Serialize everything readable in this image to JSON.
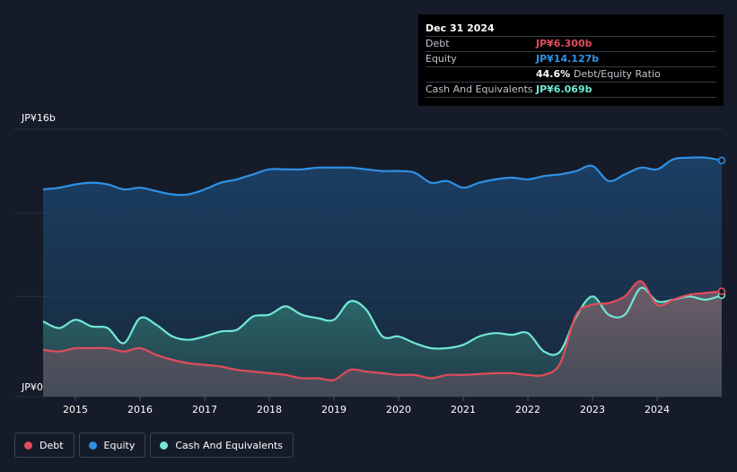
{
  "tooltip": {
    "date": "Dec 31 2024",
    "rows": [
      {
        "label": "Debt",
        "value": "JP¥6.300b",
        "color": "#e04c5c"
      },
      {
        "label": "Equity",
        "value": "JP¥14.127b",
        "color": "#2f91e6"
      },
      {
        "label": "",
        "value": "44.6%",
        "suffix": "Debt/Equity Ratio",
        "color": "#ffffff"
      },
      {
        "label": "Cash And Equivalents",
        "value": "JP¥6.069b",
        "color": "#71e7d6"
      }
    ]
  },
  "legend": [
    {
      "label": "Debt",
      "color": "#e04c5c"
    },
    {
      "label": "Equity",
      "color": "#2f91e6"
    },
    {
      "label": "Cash And Equivalents",
      "color": "#71e7d6"
    }
  ],
  "chart_data": {
    "type": "area",
    "ylabel_top": "JP¥16b",
    "ylabel_bottom": "JP¥0",
    "ylim": [
      0,
      16
    ],
    "xlim": [
      2014.5,
      2025.0
    ],
    "x_ticks": [
      "2015",
      "2016",
      "2017",
      "2018",
      "2019",
      "2020",
      "2021",
      "2022",
      "2023",
      "2024"
    ],
    "x_tick_values": [
      2015,
      2016,
      2017,
      2018,
      2019,
      2020,
      2021,
      2022,
      2023,
      2024
    ],
    "series": [
      {
        "name": "Equity",
        "color": "#2f91e6",
        "points": [
          [
            2014.5,
            12.4
          ],
          [
            2014.75,
            12.5
          ],
          [
            2015.0,
            12.7
          ],
          [
            2015.25,
            12.8
          ],
          [
            2015.5,
            12.7
          ],
          [
            2015.75,
            12.4
          ],
          [
            2016.0,
            12.5
          ],
          [
            2016.25,
            12.3
          ],
          [
            2016.5,
            12.1
          ],
          [
            2016.75,
            12.1
          ],
          [
            2017.0,
            12.4
          ],
          [
            2017.25,
            12.8
          ],
          [
            2017.5,
            13.0
          ],
          [
            2017.75,
            13.3
          ],
          [
            2018.0,
            13.6
          ],
          [
            2018.25,
            13.6
          ],
          [
            2018.5,
            13.6
          ],
          [
            2018.75,
            13.7
          ],
          [
            2019.0,
            13.7
          ],
          [
            2019.25,
            13.7
          ],
          [
            2019.5,
            13.6
          ],
          [
            2019.75,
            13.5
          ],
          [
            2020.0,
            13.5
          ],
          [
            2020.25,
            13.4
          ],
          [
            2020.5,
            12.8
          ],
          [
            2020.75,
            12.9
          ],
          [
            2021.0,
            12.5
          ],
          [
            2021.25,
            12.8
          ],
          [
            2021.5,
            13.0
          ],
          [
            2021.75,
            13.1
          ],
          [
            2022.0,
            13.0
          ],
          [
            2022.25,
            13.2
          ],
          [
            2022.5,
            13.3
          ],
          [
            2022.75,
            13.5
          ],
          [
            2023.0,
            13.8
          ],
          [
            2023.25,
            12.9
          ],
          [
            2023.5,
            13.3
          ],
          [
            2023.75,
            13.7
          ],
          [
            2024.0,
            13.6
          ],
          [
            2024.25,
            14.2
          ],
          [
            2024.5,
            14.3
          ],
          [
            2024.75,
            14.3
          ],
          [
            2025.0,
            14.127
          ]
        ]
      },
      {
        "name": "Cash And Equivalents",
        "color": "#71e7d6",
        "points": [
          [
            2014.5,
            4.5
          ],
          [
            2014.75,
            4.1
          ],
          [
            2015.0,
            4.6
          ],
          [
            2015.25,
            4.2
          ],
          [
            2015.5,
            4.1
          ],
          [
            2015.75,
            3.2
          ],
          [
            2016.0,
            4.7
          ],
          [
            2016.25,
            4.3
          ],
          [
            2016.5,
            3.6
          ],
          [
            2016.75,
            3.4
          ],
          [
            2017.0,
            3.6
          ],
          [
            2017.25,
            3.9
          ],
          [
            2017.5,
            4.0
          ],
          [
            2017.75,
            4.8
          ],
          [
            2018.0,
            4.9
          ],
          [
            2018.25,
            5.4
          ],
          [
            2018.5,
            4.9
          ],
          [
            2018.75,
            4.7
          ],
          [
            2019.0,
            4.6
          ],
          [
            2019.25,
            5.7
          ],
          [
            2019.5,
            5.2
          ],
          [
            2019.75,
            3.6
          ],
          [
            2020.0,
            3.6
          ],
          [
            2020.25,
            3.2
          ],
          [
            2020.5,
            2.9
          ],
          [
            2020.75,
            2.9
          ],
          [
            2021.0,
            3.1
          ],
          [
            2021.25,
            3.6
          ],
          [
            2021.5,
            3.8
          ],
          [
            2021.75,
            3.7
          ],
          [
            2022.0,
            3.8
          ],
          [
            2022.25,
            2.7
          ],
          [
            2022.5,
            2.7
          ],
          [
            2022.75,
            4.8
          ],
          [
            2023.0,
            6.0
          ],
          [
            2023.25,
            4.9
          ],
          [
            2023.5,
            4.9
          ],
          [
            2023.75,
            6.5
          ],
          [
            2024.0,
            5.7
          ],
          [
            2024.25,
            5.8
          ],
          [
            2024.5,
            6.0
          ],
          [
            2024.75,
            5.8
          ],
          [
            2025.0,
            6.069
          ]
        ]
      },
      {
        "name": "Debt",
        "color": "#e04c5c",
        "points": [
          [
            2014.5,
            2.8
          ],
          [
            2014.75,
            2.7
          ],
          [
            2015.0,
            2.9
          ],
          [
            2015.25,
            2.9
          ],
          [
            2015.5,
            2.9
          ],
          [
            2015.75,
            2.7
          ],
          [
            2016.0,
            2.9
          ],
          [
            2016.25,
            2.5
          ],
          [
            2016.5,
            2.2
          ],
          [
            2016.75,
            2.0
          ],
          [
            2017.0,
            1.9
          ],
          [
            2017.25,
            1.8
          ],
          [
            2017.5,
            1.6
          ],
          [
            2017.75,
            1.5
          ],
          [
            2018.0,
            1.4
          ],
          [
            2018.25,
            1.3
          ],
          [
            2018.5,
            1.1
          ],
          [
            2018.75,
            1.1
          ],
          [
            2019.0,
            1.0
          ],
          [
            2019.25,
            1.6
          ],
          [
            2019.5,
            1.5
          ],
          [
            2019.75,
            1.4
          ],
          [
            2020.0,
            1.3
          ],
          [
            2020.25,
            1.3
          ],
          [
            2020.5,
            1.1
          ],
          [
            2020.75,
            1.3
          ],
          [
            2021.0,
            1.3
          ],
          [
            2021.25,
            1.35
          ],
          [
            2021.5,
            1.4
          ],
          [
            2021.75,
            1.4
          ],
          [
            2022.0,
            1.3
          ],
          [
            2022.25,
            1.3
          ],
          [
            2022.5,
            2.0
          ],
          [
            2022.75,
            4.9
          ],
          [
            2023.0,
            5.5
          ],
          [
            2023.25,
            5.6
          ],
          [
            2023.5,
            6.0
          ],
          [
            2023.75,
            6.9
          ],
          [
            2024.0,
            5.5
          ],
          [
            2024.25,
            5.8
          ],
          [
            2024.5,
            6.1
          ],
          [
            2024.75,
            6.2
          ],
          [
            2025.0,
            6.3
          ]
        ]
      }
    ],
    "grid": true,
    "legend_position": "bottom-left"
  }
}
